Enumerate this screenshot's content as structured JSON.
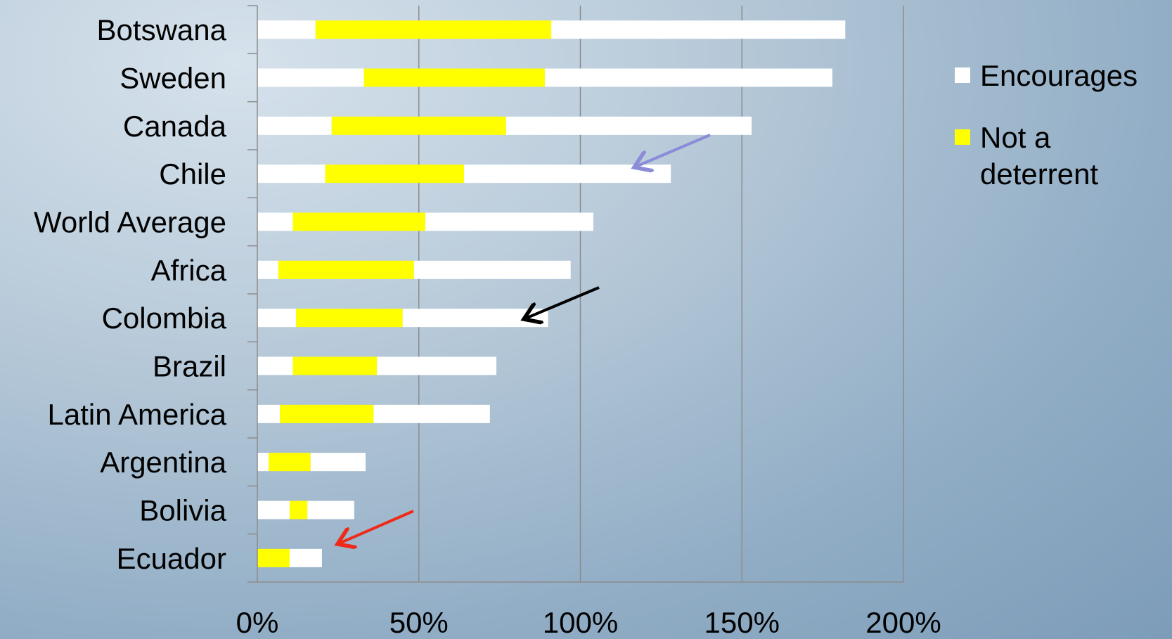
{
  "chart_data": {
    "type": "bar",
    "orientation": "horizontal",
    "stacked": true,
    "categories": [
      "Botswana",
      "Sweden",
      "Canada",
      "Chile",
      "World Average",
      "Africa",
      "Colombia",
      "Brazil",
      "Latin America",
      "Argentina",
      "Bolivia",
      "Ecuador"
    ],
    "series": [
      {
        "name": "Encourages",
        "color": "#ffffff",
        "values": [
          18,
          33,
          23,
          21,
          11,
          6.5,
          12,
          11,
          7,
          3.5,
          10,
          0
        ]
      },
      {
        "name": "Not a deterrent",
        "color": "#ffff00",
        "values": [
          73,
          56,
          54,
          43,
          41,
          42,
          33,
          26,
          29,
          13,
          5.5,
          10
        ]
      },
      {
        "name": "Encourages",
        "color": "#ffffff",
        "values": [
          91,
          89,
          76,
          64,
          52,
          48.5,
          45,
          37,
          36,
          17,
          14.5,
          10
        ]
      }
    ],
    "xlim": [
      0,
      200
    ],
    "xticks": [
      "0%",
      "50%",
      "100%",
      "150%",
      "200%"
    ],
    "grid": "vertical",
    "legend": {
      "position": "right",
      "items": [
        {
          "label": "Encourages",
          "color": "#ffffff"
        },
        {
          "label": "Not a deterrent",
          "color": "#ffff00"
        }
      ]
    },
    "annotations": [
      {
        "type": "arrow",
        "color": "#8b8bd8",
        "target": "Chile"
      },
      {
        "type": "arrow",
        "color": "#000000",
        "target": "Colombia"
      },
      {
        "type": "arrow",
        "color": "#ee2b1b",
        "target": "Ecuador"
      }
    ]
  },
  "legend_labels": {
    "encourages": "Encourages",
    "not_a_deterrent": "Not a deterrent"
  }
}
